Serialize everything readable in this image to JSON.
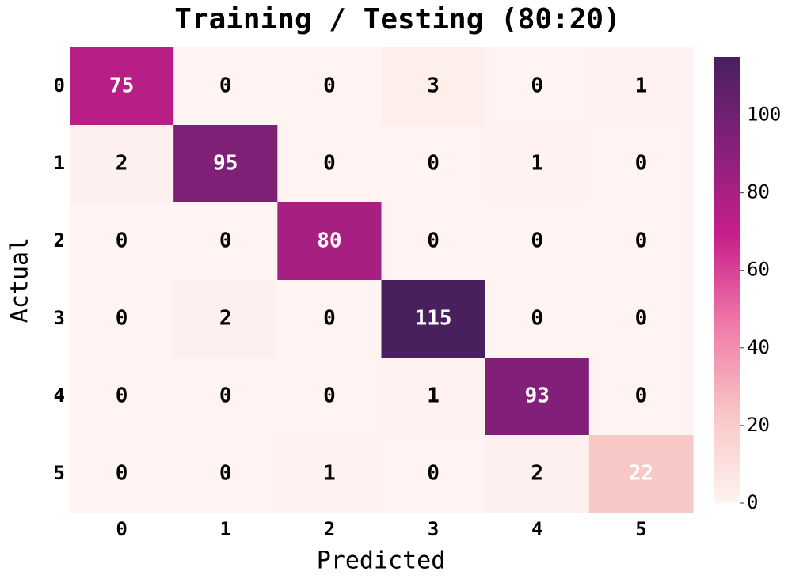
{
  "chart_data": {
    "type": "heatmap",
    "title": "Training / Testing (80:20)",
    "xlabel": "Predicted",
    "ylabel": "Actual",
    "x_categories": [
      "0",
      "1",
      "2",
      "3",
      "4",
      "5"
    ],
    "y_categories": [
      "0",
      "1",
      "2",
      "3",
      "4",
      "5"
    ],
    "values": [
      [
        75,
        0,
        0,
        3,
        0,
        1
      ],
      [
        2,
        95,
        0,
        0,
        1,
        0
      ],
      [
        0,
        0,
        80,
        0,
        0,
        0
      ],
      [
        0,
        2,
        0,
        115,
        0,
        0
      ],
      [
        0,
        0,
        0,
        1,
        93,
        0
      ],
      [
        0,
        0,
        1,
        0,
        2,
        22
      ]
    ],
    "cmap": [
      "#fff4f2",
      "#f8c6c4",
      "#f07aa8",
      "#c81f8a",
      "#85207a",
      "#48205e"
    ],
    "clim": [
      0,
      115
    ],
    "colorbar_ticks": [
      0,
      20,
      40,
      60,
      80,
      100
    ]
  }
}
